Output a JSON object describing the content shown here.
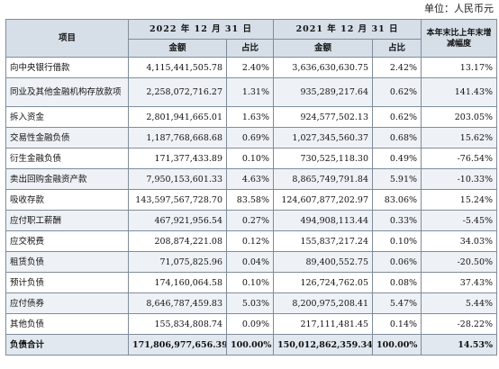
{
  "unit_label": "单位：人民币元",
  "header": {
    "item": "项目",
    "year_2022": "2022 年 12 月 31 日",
    "year_2021": "2021 年 12 月 31 日",
    "change": "本年末比上年末增减幅度",
    "amount": "金额",
    "ratio": "占比"
  },
  "rows": [
    {
      "name": "向中央银行借款",
      "a22": "4,115,441,505.78",
      "r22": "2.40%",
      "a21": "3,636,630,630.75",
      "r21": "2.42%",
      "chg": "13.17%"
    },
    {
      "name": "同业及其他金融机构存放款项",
      "a22": "2,258,072,716.27",
      "r22": "1.31%",
      "a21": "935,289,217.64",
      "r21": "0.62%",
      "chg": "141.43%"
    },
    {
      "name": "拆入资金",
      "a22": "2,801,941,665.01",
      "r22": "1.63%",
      "a21": "924,577,502.13",
      "r21": "0.62%",
      "chg": "203.05%"
    },
    {
      "name": "交易性金融负债",
      "a22": "1,187,768,668.68",
      "r22": "0.69%",
      "a21": "1,027,345,560.37",
      "r21": "0.68%",
      "chg": "15.62%"
    },
    {
      "name": "衍生金融负债",
      "a22": "171,377,433.89",
      "r22": "0.10%",
      "a21": "730,525,118.30",
      "r21": "0.49%",
      "chg": "-76.54%"
    },
    {
      "name": "卖出回购金融资产款",
      "a22": "7,950,153,601.33",
      "r22": "4.63%",
      "a21": "8,865,749,791.84",
      "r21": "5.91%",
      "chg": "-10.33%"
    },
    {
      "name": "吸收存款",
      "a22": "143,597,567,728.70",
      "r22": "83.58%",
      "a21": "124,607,877,202.97",
      "r21": "83.06%",
      "chg": "15.24%"
    },
    {
      "name": "应付职工薪酬",
      "a22": "467,921,956.54",
      "r22": "0.27%",
      "a21": "494,908,113.44",
      "r21": "0.33%",
      "chg": "-5.45%"
    },
    {
      "name": "应交税费",
      "a22": "208,874,221.08",
      "r22": "0.12%",
      "a21": "155,837,217.24",
      "r21": "0.10%",
      "chg": "34.03%"
    },
    {
      "name": "租赁负债",
      "a22": "71,075,825.96",
      "r22": "0.04%",
      "a21": "89,400,552.75",
      "r21": "0.06%",
      "chg": "-20.50%"
    },
    {
      "name": "预计负债",
      "a22": "174,160,064.58",
      "r22": "0.10%",
      "a21": "126,724,762.05",
      "r21": "0.08%",
      "chg": "37.43%"
    },
    {
      "name": "应付债券",
      "a22": "8,646,787,459.83",
      "r22": "5.03%",
      "a21": "8,200,975,208.41",
      "r21": "5.47%",
      "chg": "5.44%"
    },
    {
      "name": "其他负债",
      "a22": "155,834,808.74",
      "r22": "0.09%",
      "a21": "217,111,481.45",
      "r21": "0.14%",
      "chg": "-28.22%"
    }
  ],
  "total": {
    "name": "负债合计",
    "a22": "171,806,977,656.39",
    "r22": "100.00%",
    "a21": "150,012,862,359.34",
    "r21": "100.00%",
    "chg": "14.53%"
  }
}
